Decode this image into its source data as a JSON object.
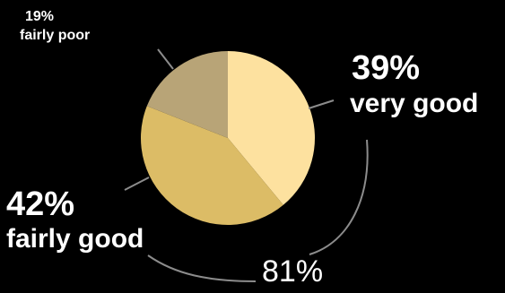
{
  "chart_data": {
    "type": "pie",
    "categories": [
      "very good",
      "fairly good",
      "fairly poor"
    ],
    "values": [
      39,
      42,
      19
    ],
    "value_labels": [
      "39%",
      "42%",
      "19%"
    ],
    "colors": [
      "#fde19f",
      "#dcbc66",
      "#b8a477"
    ],
    "summary": {
      "label": "81%",
      "spans": [
        "very good",
        "fairly good"
      ]
    },
    "background": "#000000",
    "title": "",
    "legend": "none"
  }
}
